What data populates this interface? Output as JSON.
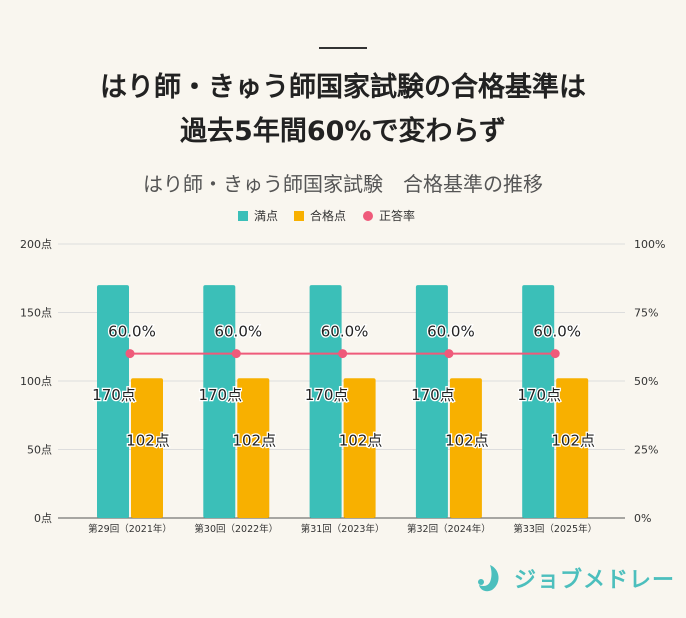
{
  "header": {
    "title_line1": "はり師・きゅう師国家試験の合格基準は",
    "title_line2": "過去5年間60%で変わらず"
  },
  "chart_data": {
    "type": "bar",
    "title": "はり師・きゅう師国家試験　合格基準の推移",
    "categories": [
      "第29回（2021年）",
      "第30回（2022年）",
      "第31回（2023年）",
      "第32回（2024年）",
      "第33回（2025年）"
    ],
    "series": [
      {
        "name": "満点",
        "kind": "bar",
        "axis": "left",
        "values": [
          170,
          170,
          170,
          170,
          170
        ],
        "labels": [
          "170点",
          "170点",
          "170点",
          "170点",
          "170点"
        ],
        "color": "#3bbfb8"
      },
      {
        "name": "合格点",
        "kind": "bar",
        "axis": "left",
        "values": [
          102,
          102,
          102,
          102,
          102
        ],
        "labels": [
          "102点",
          "102点",
          "102点",
          "102点",
          "102点"
        ],
        "color": "#f8b000"
      },
      {
        "name": "正答率",
        "kind": "line",
        "axis": "right",
        "values": [
          60,
          60,
          60,
          60,
          60
        ],
        "labels": [
          "60.0%",
          "60.0%",
          "60.0%",
          "60.0%",
          "60.0%"
        ],
        "color": "#ef5a7a"
      }
    ],
    "y_left": {
      "range": [
        0,
        200
      ],
      "ticks": [
        "0点",
        "50点",
        "100点",
        "150点",
        "200点"
      ]
    },
    "y_right": {
      "range": [
        0,
        100
      ],
      "ticks": [
        "0%",
        "25%",
        "50%",
        "75%",
        "100%"
      ]
    },
    "grid": true,
    "legend": "top-center"
  },
  "logo": {
    "text": "ジョブメドレー",
    "color": "#4cbfbd"
  }
}
